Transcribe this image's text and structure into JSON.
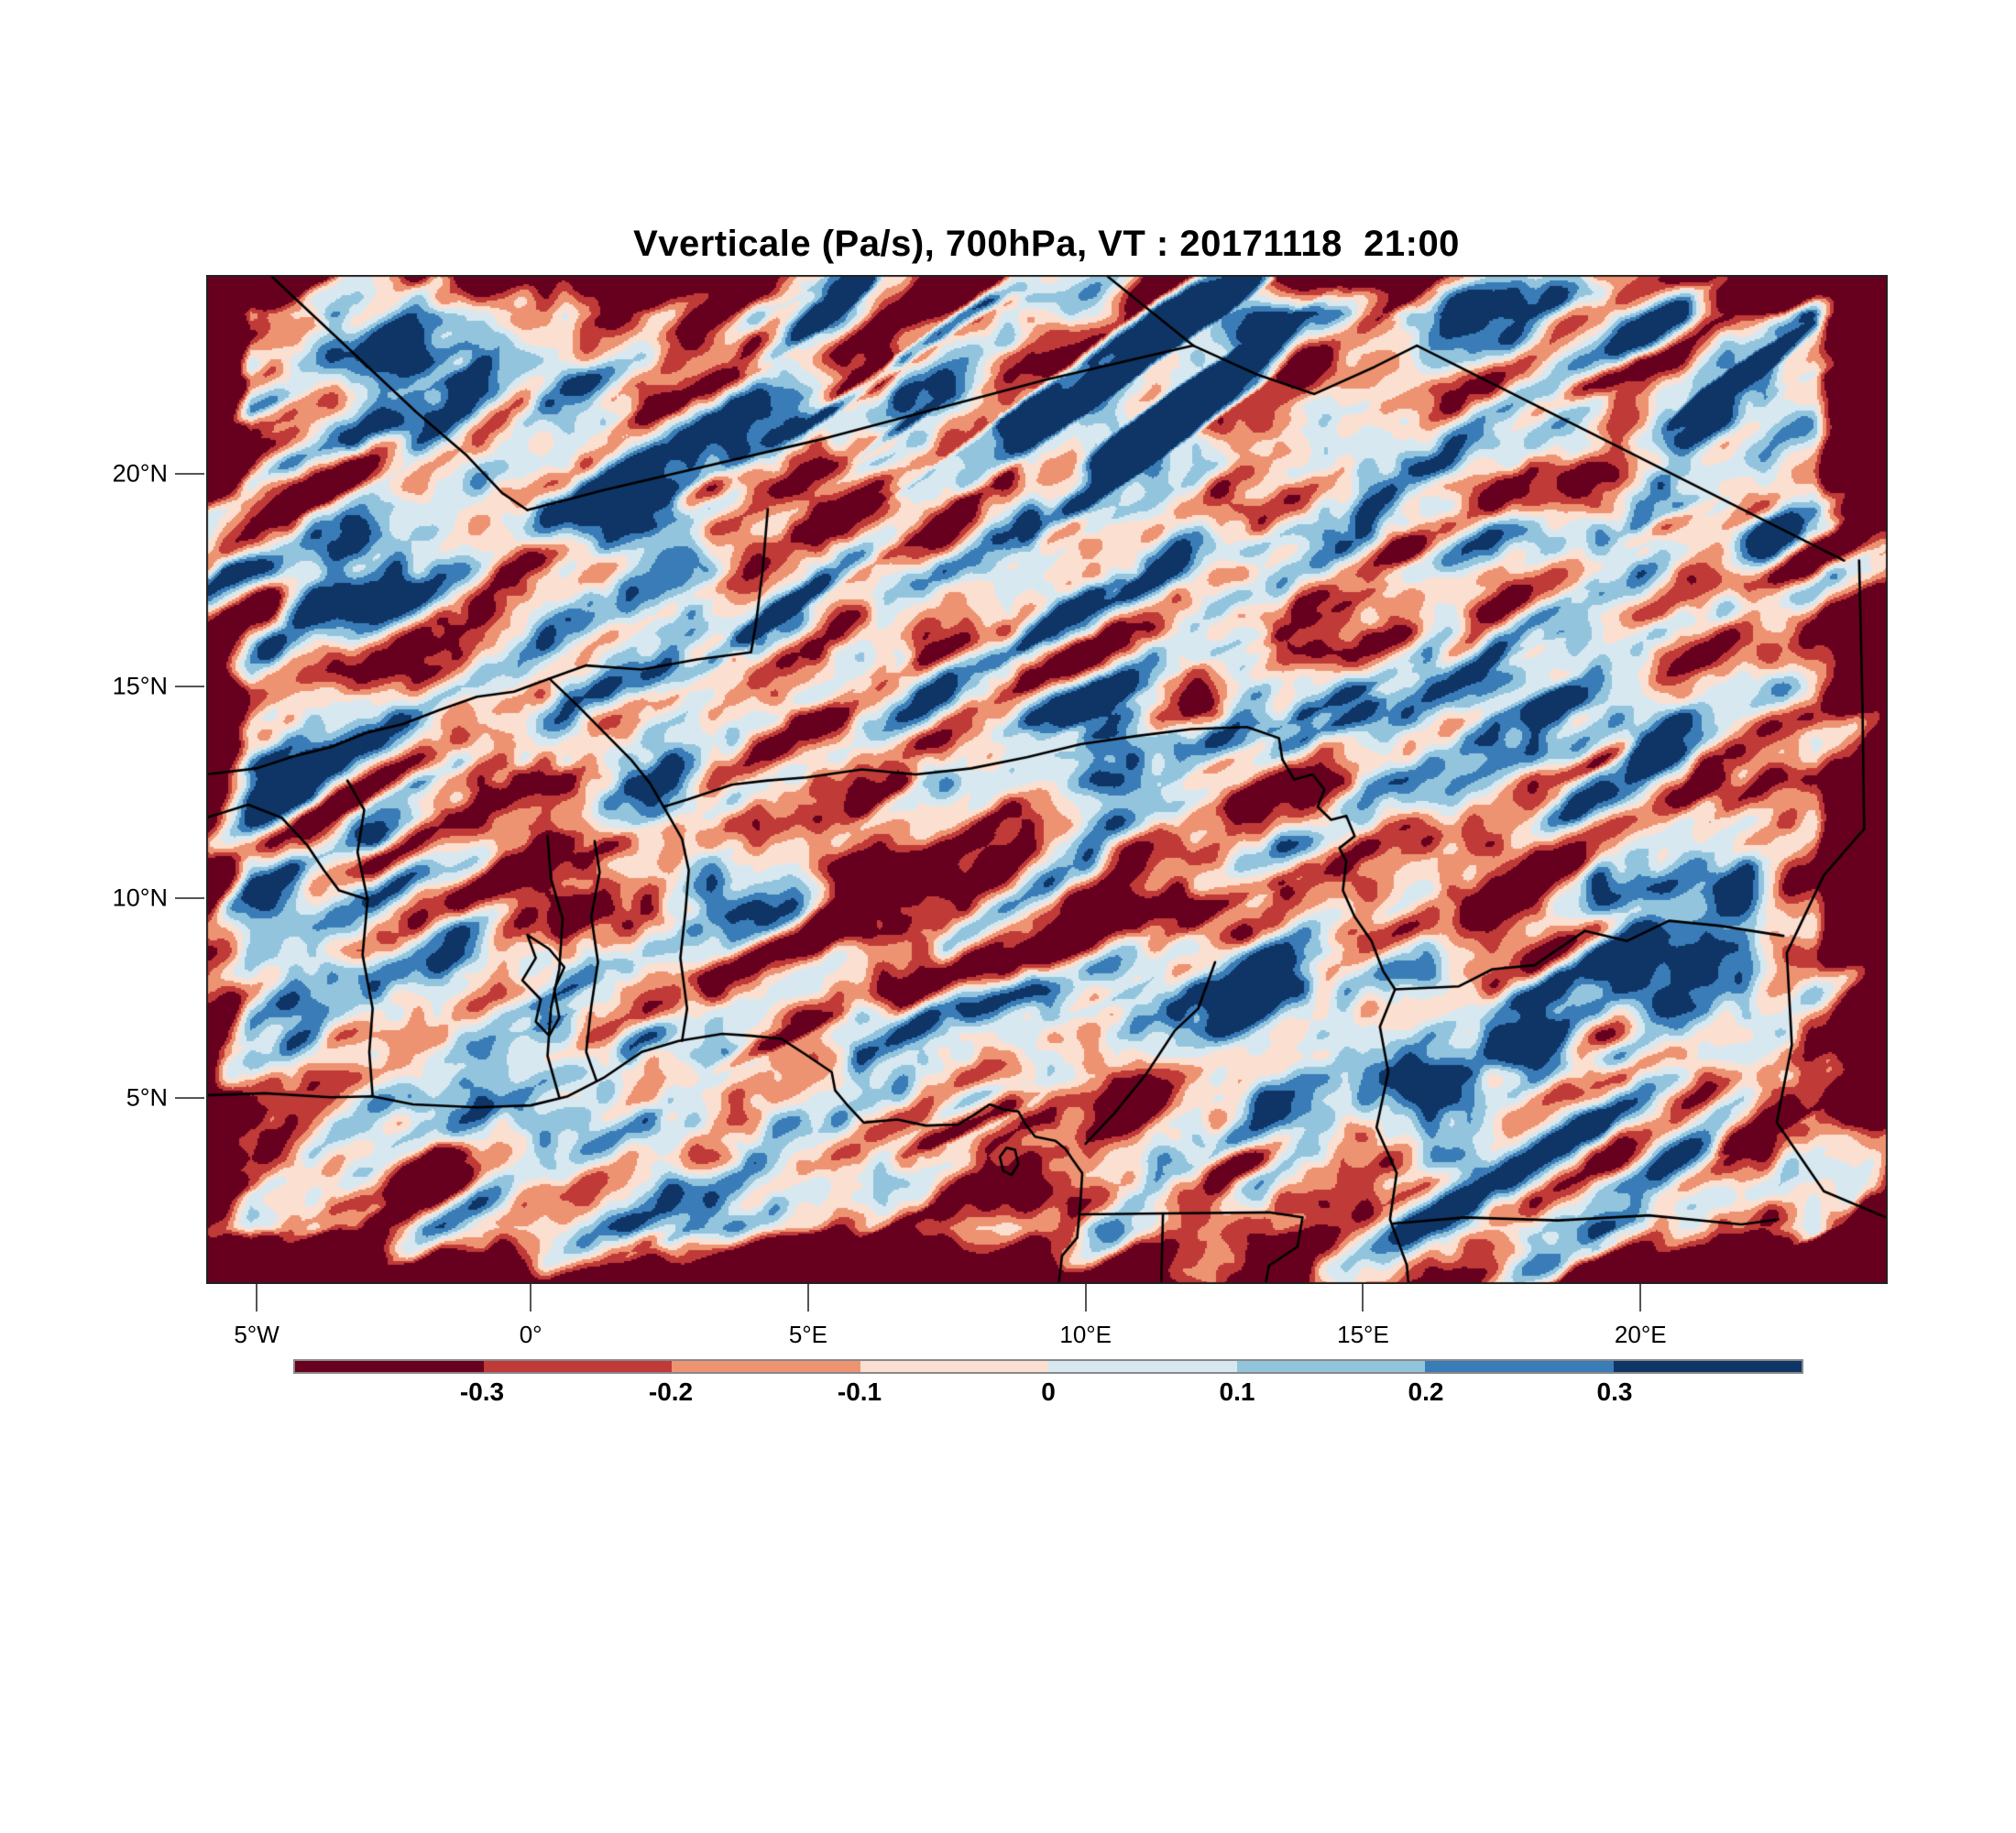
{
  "title": "Vverticale (Pa/s), 700hPa, VT : 20171118  21:00",
  "chart_data": {
    "type": "heatmap",
    "title": "Vverticale (Pa/s), 700hPa, VT : 20171118  21:00",
    "field_name": "Vverticale",
    "units": "Pa/s",
    "x_ticks": [
      {
        "label": "5°W",
        "pct": 3.0
      },
      {
        "label": "0°",
        "pct": 19.3
      },
      {
        "label": "5°E",
        "pct": 35.8
      },
      {
        "label": "10°E",
        "pct": 52.3
      },
      {
        "label": "15°E",
        "pct": 68.8
      },
      {
        "label": "20°E",
        "pct": 85.3
      }
    ],
    "y_ticks": [
      {
        "label": "20°N",
        "pct": 19.7
      },
      {
        "label": "15°N",
        "pct": 40.8
      },
      {
        "label": "10°N",
        "pct": 61.8
      },
      {
        "label": "5°N",
        "pct": 81.6
      }
    ],
    "colorbar": {
      "labels": [
        "-0.3",
        "-0.2",
        "-0.1",
        "0",
        "0.1",
        "0.2",
        "0.3"
      ],
      "levels": [
        -0.3,
        -0.2,
        -0.1,
        0,
        0.1,
        0.2,
        0.3
      ],
      "colors": [
        "#67001f",
        "#c03a38",
        "#ee9372",
        "#fbe0d1",
        "#d8e8f1",
        "#92c5dd",
        "#3a7cb8",
        "#0e3565"
      ]
    },
    "grid": false,
    "legend_position": "bottom",
    "texture": {
      "seed": 11,
      "offset": 0.012,
      "octaves": [
        {
          "angle": -30,
          "lx": 150,
          "ly": 38,
          "w": 0.46
        },
        {
          "angle": -30,
          "lx": 70,
          "ly": 26,
          "w": 0.24
        },
        {
          "angle": 0,
          "lx": 23,
          "ly": 23,
          "w": 0.12
        }
      ],
      "blue_streaks": {
        "angle": -35,
        "lx": 260,
        "ly": 30,
        "threshold": 0.7,
        "gain": 2.8
      },
      "red_streaks": {
        "angle": -25,
        "lx": 190,
        "ly": 34,
        "threshold": 0.74,
        "gain": 2.2
      },
      "edges": {
        "left": [
          48,
          1.25
        ],
        "right": [
          80,
          1.5
        ],
        "bottom": [
          62,
          1.45
        ],
        "top": [
          42,
          1.1
        ]
      }
    },
    "borders": [
      [
        [
          3.8,
          0
        ],
        [
          12.5,
          13.6
        ],
        [
          15.5,
          17.9
        ],
        [
          17.6,
          21.6
        ],
        [
          19.1,
          23.3
        ]
      ],
      [
        [
          19.1,
          23.3
        ],
        [
          23.7,
          21.3
        ],
        [
          36.8,
          16.2
        ],
        [
          49.9,
          10.4
        ],
        [
          58.7,
          7.0
        ]
      ],
      [
        [
          58.7,
          7.0
        ],
        [
          53.5,
          0
        ]
      ],
      [
        [
          58.7,
          7.0
        ],
        [
          62.4,
          9.8
        ],
        [
          65.9,
          11.8
        ],
        [
          69.5,
          9.1
        ],
        [
          72.0,
          7.0
        ]
      ],
      [
        [
          72.0,
          7.0
        ],
        [
          83.1,
          16.3
        ],
        [
          97.4,
          28.3
        ]
      ],
      [
        [
          98.3,
          28.3
        ],
        [
          98.5,
          42.7
        ],
        [
          98.6,
          54.9
        ]
      ],
      [
        [
          98.6,
          54.9
        ],
        [
          96.2,
          59.5
        ],
        [
          94.0,
          67.2
        ],
        [
          94.3,
          76.3
        ],
        [
          93.4,
          84.0
        ],
        [
          96.2,
          90.8
        ],
        [
          99.9,
          93.4
        ]
      ],
      [
        [
          33.4,
          23.2
        ],
        [
          33.1,
          29.1
        ],
        [
          32.7,
          34.5
        ],
        [
          32.4,
          37.4
        ],
        [
          29.2,
          38.1
        ],
        [
          25.9,
          39.1
        ],
        [
          22.6,
          38.7
        ],
        [
          20.4,
          40.0
        ],
        [
          18.3,
          41.3
        ],
        [
          16.1,
          41.8
        ],
        [
          13.9,
          43.1
        ],
        [
          11.7,
          44.5
        ],
        [
          9.5,
          45.4
        ],
        [
          7.4,
          46.8
        ],
        [
          5.2,
          47.7
        ],
        [
          3.0,
          48.9
        ],
        [
          0,
          49.5
        ]
      ],
      [
        [
          20.4,
          40.0
        ],
        [
          22.1,
          42.7
        ],
        [
          23.7,
          45.4
        ],
        [
          25.3,
          48.1
        ],
        [
          26.4,
          50.4
        ],
        [
          27.2,
          52.7
        ]
      ],
      [
        [
          27.2,
          52.7
        ],
        [
          28.6,
          52.0
        ],
        [
          31.3,
          50.5
        ],
        [
          33.4,
          50.1
        ],
        [
          35.7,
          49.8
        ],
        [
          39.0,
          49.0
        ],
        [
          42.2,
          49.5
        ],
        [
          45.5,
          48.9
        ],
        [
          48.8,
          47.8
        ],
        [
          52.0,
          46.5
        ],
        [
          55.3,
          45.7
        ],
        [
          58.6,
          45.0
        ],
        [
          61.9,
          44.8
        ],
        [
          63.8,
          45.9
        ],
        [
          64.0,
          48.0
        ]
      ],
      [
        [
          27.2,
          52.7
        ],
        [
          28.3,
          55.9
        ],
        [
          28.7,
          59.0
        ],
        [
          28.5,
          63.1
        ],
        [
          28.2,
          67.7
        ],
        [
          28.6,
          72.7
        ],
        [
          28.3,
          75.9
        ]
      ],
      [
        [
          23.1,
          56.1
        ],
        [
          23.4,
          59.2
        ],
        [
          22.9,
          63.6
        ],
        [
          23.3,
          68.1
        ],
        [
          22.9,
          72.5
        ],
        [
          22.6,
          77.0
        ],
        [
          23.2,
          79.8
        ]
      ],
      [
        [
          20.3,
          55.6
        ],
        [
          20.5,
          59.8
        ],
        [
          21.2,
          63.8
        ],
        [
          21.0,
          68.8
        ],
        [
          20.5,
          72.7
        ],
        [
          20.3,
          77.4
        ],
        [
          21.0,
          81.5
        ]
      ],
      [
        [
          8.4,
          50.1
        ],
        [
          9.4,
          53.0
        ],
        [
          9.0,
          57.2
        ],
        [
          9.6,
          61.9
        ],
        [
          9.3,
          67.4
        ],
        [
          9.9,
          72.7
        ],
        [
          9.7,
          77.0
        ],
        [
          9.9,
          81.4
        ]
      ],
      [
        [
          0,
          53.8
        ],
        [
          2.5,
          52.5
        ],
        [
          4.5,
          53.8
        ],
        [
          6.0,
          56.5
        ],
        [
          7.0,
          59.0
        ],
        [
          7.9,
          61.0
        ],
        [
          9.6,
          61.9
        ]
      ],
      [
        [
          19.1,
          65.4
        ],
        [
          19.6,
          67.7
        ],
        [
          18.8,
          69.9
        ],
        [
          19.9,
          71.8
        ],
        [
          19.6,
          74.0
        ],
        [
          20.4,
          75.4
        ],
        [
          21.0,
          73.6
        ],
        [
          20.7,
          70.8
        ],
        [
          21.3,
          68.6
        ],
        [
          20.4,
          66.8
        ],
        [
          19.1,
          65.4
        ]
      ],
      [
        [
          0,
          81.3
        ],
        [
          3.5,
          81.1
        ],
        [
          7.4,
          81.5
        ],
        [
          9.9,
          81.4
        ],
        [
          12.3,
          82.2
        ],
        [
          16.1,
          82.5
        ],
        [
          19.3,
          82.3
        ],
        [
          21.5,
          81.4
        ],
        [
          23.7,
          79.5
        ],
        [
          25.9,
          77.0
        ],
        [
          28.1,
          75.9
        ],
        [
          30.7,
          75.2
        ],
        [
          32.4,
          75.4
        ],
        [
          34.2,
          75.7
        ],
        [
          35.6,
          77.2
        ],
        [
          37.2,
          79.0
        ],
        [
          37.4,
          80.8
        ],
        [
          38.2,
          82.4
        ],
        [
          39.1,
          84.0
        ],
        [
          41.1,
          83.7
        ],
        [
          42.8,
          84.3
        ],
        [
          44.7,
          84.2
        ],
        [
          45.6,
          83.3
        ],
        [
          46.6,
          82.2
        ],
        [
          47.4,
          82.7
        ],
        [
          48.3,
          82.9
        ],
        [
          48.7,
          84.1
        ],
        [
          49.3,
          85.4
        ],
        [
          50.5,
          85.8
        ],
        [
          51.1,
          86.6
        ],
        [
          51.5,
          87.6
        ],
        [
          52.1,
          89.0
        ],
        [
          52.0,
          91.7
        ],
        [
          51.8,
          95.4
        ],
        [
          50.9,
          97.2
        ],
        [
          50.7,
          100
        ]
      ],
      [
        [
          47.6,
          86.5
        ],
        [
          48.1,
          86.7
        ],
        [
          48.3,
          88.1
        ],
        [
          47.9,
          89.2
        ],
        [
          47.4,
          88.8
        ],
        [
          47.2,
          87.4
        ],
        [
          47.6,
          86.5
        ]
      ],
      [
        [
          60.0,
          68.1
        ],
        [
          59.0,
          72.7
        ],
        [
          57.6,
          74.9
        ],
        [
          55.9,
          79.2
        ],
        [
          54.0,
          83.1
        ],
        [
          52.3,
          86.1
        ]
      ],
      [
        [
          64.0,
          48.0
        ],
        [
          64.7,
          50.0
        ],
        [
          65.8,
          49.5
        ],
        [
          66.5,
          51.0
        ],
        [
          66.1,
          52.7
        ],
        [
          66.9,
          54.0
        ],
        [
          67.8,
          53.6
        ],
        [
          68.3,
          55.6
        ],
        [
          67.4,
          56.8
        ],
        [
          67.8,
          58.1
        ],
        [
          67.6,
          61.0
        ],
        [
          68.3,
          63.6
        ],
        [
          69.3,
          66.0
        ],
        [
          70.0,
          69.0
        ],
        [
          70.7,
          70.8
        ],
        [
          69.8,
          74.5
        ],
        [
          70.3,
          79.0
        ],
        [
          69.6,
          84.5
        ],
        [
          70.8,
          89.0
        ],
        [
          70.4,
          93.6
        ],
        [
          71.4,
          98.1
        ],
        [
          71.5,
          100
        ]
      ],
      [
        [
          70.7,
          70.8
        ],
        [
          74.5,
          70.5
        ],
        [
          76.5,
          68.8
        ],
        [
          79.0,
          68.4
        ],
        [
          82.0,
          65.0
        ],
        [
          84.5,
          66.0
        ],
        [
          87.0,
          64.0
        ],
        [
          90.0,
          64.5
        ],
        [
          93.8,
          65.5
        ]
      ],
      [
        [
          70.6,
          94.0
        ],
        [
          74.9,
          93.4
        ],
        [
          80.4,
          93.7
        ],
        [
          85.8,
          93.2
        ],
        [
          91.3,
          94.1
        ],
        [
          93.5,
          93.6
        ]
      ],
      [
        [
          52.0,
          93.1
        ],
        [
          56.9,
          93.0
        ],
        [
          63.2,
          92.9
        ],
        [
          65.2,
          93.4
        ],
        [
          64.9,
          96.3
        ],
        [
          63.2,
          98.2
        ],
        [
          63.0,
          100
        ]
      ],
      [
        [
          56.9,
          93.0
        ],
        [
          56.8,
          100
        ]
      ]
    ]
  }
}
